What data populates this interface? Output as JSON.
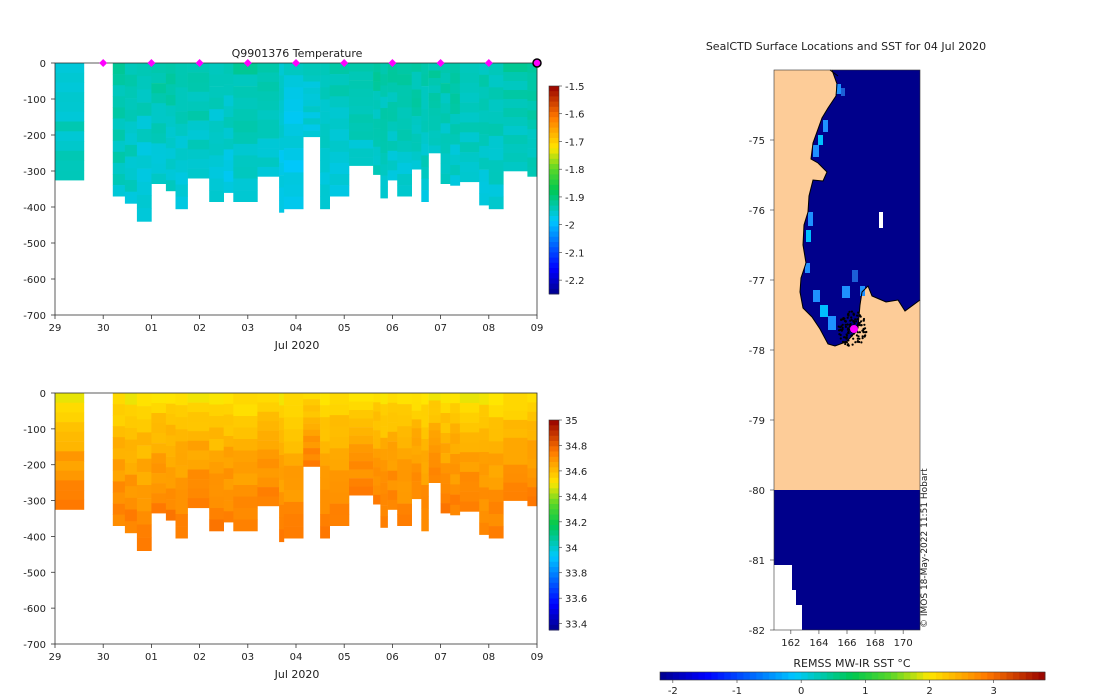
{
  "chart_data": [
    {
      "type": "heatmap",
      "title": "Q9901376  Temperature",
      "xlabel": "Jul 2020",
      "ylabel": "",
      "x_ticks": [
        "29",
        "30",
        "01",
        "02",
        "03",
        "04",
        "05",
        "06",
        "07",
        "08",
        "09"
      ],
      "x_tick_values": [
        0,
        1,
        2,
        3,
        4,
        5,
        6,
        7,
        8,
        9,
        10
      ],
      "xlim": [
        0,
        10
      ],
      "ylim": [
        -700,
        0
      ],
      "y_ticks": [
        0,
        -100,
        -200,
        -300,
        -400,
        -500,
        -600,
        -700
      ],
      "colorbar": {
        "min": -2.25,
        "max": -1.5,
        "ticks": [
          -1.5,
          -1.6,
          -1.7,
          -1.8,
          -1.9,
          -2,
          -2.1,
          -2.2
        ],
        "tick_labels": [
          "-1.5",
          "-1.6",
          "-1.7",
          "-1.8",
          "-1.9",
          "-2",
          "-2.1",
          "-2.2"
        ]
      },
      "profile_markers": [
        1,
        2,
        3,
        4,
        5,
        6,
        7,
        8,
        9,
        10
      ],
      "profiles": [
        {
          "t0": 0.0,
          "t1": 0.6,
          "depth": 325,
          "surface": -1.95,
          "bottom": -1.95
        },
        {
          "t0": 1.2,
          "t1": 1.45,
          "depth": 370,
          "surface": -1.93,
          "bottom": -1.95
        },
        {
          "t0": 1.45,
          "t1": 1.7,
          "depth": 390,
          "surface": -1.93,
          "bottom": -1.96
        },
        {
          "t0": 1.7,
          "t1": 2.0,
          "depth": 440,
          "surface": -1.94,
          "bottom": -1.97
        },
        {
          "t0": 2.0,
          "t1": 2.3,
          "depth": 335,
          "surface": -1.93,
          "bottom": -1.96
        },
        {
          "t0": 2.3,
          "t1": 2.5,
          "depth": 355,
          "surface": -1.93,
          "bottom": -1.96
        },
        {
          "t0": 2.5,
          "t1": 2.75,
          "depth": 405,
          "surface": -1.94,
          "bottom": -1.97
        },
        {
          "t0": 2.75,
          "t1": 3.2,
          "depth": 320,
          "surface": -1.93,
          "bottom": -1.96
        },
        {
          "t0": 3.2,
          "t1": 3.5,
          "depth": 385,
          "surface": -1.94,
          "bottom": -1.97
        },
        {
          "t0": 3.5,
          "t1": 3.7,
          "depth": 360,
          "surface": -1.94,
          "bottom": -1.97
        },
        {
          "t0": 3.7,
          "t1": 4.2,
          "depth": 385,
          "surface": -1.93,
          "bottom": -1.96
        },
        {
          "t0": 4.2,
          "t1": 4.65,
          "depth": 315,
          "surface": -1.94,
          "bottom": -1.96
        },
        {
          "t0": 4.65,
          "t1": 4.75,
          "depth": 415,
          "surface": -1.95,
          "bottom": -1.98
        },
        {
          "t0": 4.75,
          "t1": 5.15,
          "depth": 405,
          "surface": -1.96,
          "bottom": -1.98
        },
        {
          "t0": 5.15,
          "t1": 5.5,
          "depth": 205,
          "surface": -1.95,
          "bottom": -1.97
        },
        {
          "t0": 5.5,
          "t1": 5.7,
          "depth": 405,
          "surface": -1.94,
          "bottom": -1.97
        },
        {
          "t0": 5.7,
          "t1": 6.1,
          "depth": 370,
          "surface": -1.94,
          "bottom": -1.97
        },
        {
          "t0": 6.1,
          "t1": 6.6,
          "depth": 285,
          "surface": -1.93,
          "bottom": -1.96
        },
        {
          "t0": 6.6,
          "t1": 6.75,
          "depth": 310,
          "surface": -1.93,
          "bottom": -1.95
        },
        {
          "t0": 6.75,
          "t1": 6.9,
          "depth": 375,
          "surface": -1.93,
          "bottom": -1.96
        },
        {
          "t0": 6.9,
          "t1": 7.1,
          "depth": 325,
          "surface": -1.93,
          "bottom": -1.96
        },
        {
          "t0": 7.1,
          "t1": 7.4,
          "depth": 370,
          "surface": -1.93,
          "bottom": -1.96
        },
        {
          "t0": 7.4,
          "t1": 7.6,
          "depth": 295,
          "surface": -1.93,
          "bottom": -1.95
        },
        {
          "t0": 7.6,
          "t1": 7.75,
          "depth": 385,
          "surface": -1.93,
          "bottom": -1.96
        },
        {
          "t0": 7.75,
          "t1": 8.0,
          "depth": 250,
          "surface": -1.93,
          "bottom": -1.95
        },
        {
          "t0": 8.0,
          "t1": 8.2,
          "depth": 335,
          "surface": -1.93,
          "bottom": -1.96
        },
        {
          "t0": 8.2,
          "t1": 8.4,
          "depth": 340,
          "surface": -1.93,
          "bottom": -1.96
        },
        {
          "t0": 8.4,
          "t1": 8.8,
          "depth": 330,
          "surface": -1.93,
          "bottom": -1.96
        },
        {
          "t0": 8.8,
          "t1": 9.0,
          "depth": 395,
          "surface": -1.94,
          "bottom": -1.96
        },
        {
          "t0": 9.0,
          "t1": 9.3,
          "depth": 405,
          "surface": -1.94,
          "bottom": -1.96
        },
        {
          "t0": 9.3,
          "t1": 9.8,
          "depth": 300,
          "surface": -1.93,
          "bottom": -1.95
        },
        {
          "t0": 9.8,
          "t1": 10.0,
          "depth": 315,
          "surface": -1.93,
          "bottom": -1.95
        }
      ]
    },
    {
      "type": "heatmap",
      "title": "",
      "xlabel": "Jul 2020",
      "ylabel": "",
      "x_ticks": [
        "29",
        "30",
        "01",
        "02",
        "03",
        "04",
        "05",
        "06",
        "07",
        "08",
        "09"
      ],
      "x_tick_values": [
        0,
        1,
        2,
        3,
        4,
        5,
        6,
        7,
        8,
        9,
        10
      ],
      "xlim": [
        0,
        10
      ],
      "ylim": [
        -700,
        0
      ],
      "y_ticks": [
        0,
        -100,
        -200,
        -300,
        -400,
        -500,
        -600,
        -700
      ],
      "colorbar": {
        "min": 33.35,
        "max": 35.0,
        "ticks": [
          35,
          34.8,
          34.6,
          34.4,
          34.2,
          34,
          33.8,
          33.6,
          33.4
        ],
        "tick_labels": [
          "35",
          "34.8",
          "34.6",
          "34.4",
          "34.2",
          "34",
          "33.8",
          "33.6",
          "33.4"
        ]
      },
      "profiles_same_as_panel": 0,
      "surface_value": 34.47,
      "bottom_value": 34.74
    },
    {
      "type": "heatmap",
      "title": "SealCTD Surface Locations and SST for 04 Jul 2020",
      "xlabel": "",
      "ylabel": "",
      "x_ticks": [
        "162",
        "164",
        "166",
        "168",
        "170"
      ],
      "x_tick_values": [
        162,
        164,
        166,
        168,
        170
      ],
      "xlim": [
        160.8,
        171.2
      ],
      "y_ticks": [
        "-75",
        "-76",
        "-77",
        "-78",
        "-79",
        "-80",
        "-81",
        "-82"
      ],
      "y_tick_values": [
        -75,
        -76,
        -77,
        -78,
        -79,
        -80,
        -81,
        -82
      ],
      "ylim": [
        -82,
        -74
      ],
      "colorbar": {
        "label": "REMSS MW-IR SST °C",
        "min": -2.2,
        "max": 3.8,
        "ticks": [
          -2,
          -1,
          0,
          1,
          2,
          3
        ],
        "tick_labels": [
          "-2",
          "-1",
          "0",
          "1",
          "2",
          "3"
        ]
      },
      "sst_field_value": -1.9,
      "land_color": "#fdcc98",
      "ocean_color": "#00008b",
      "surface_locations_center": {
        "lon": 166.4,
        "lat": -77.7
      },
      "latest_location": {
        "lon": 166.5,
        "lat": -77.7
      },
      "credit": "© IMOS 18-May-2022 11:51 Hobart"
    }
  ]
}
